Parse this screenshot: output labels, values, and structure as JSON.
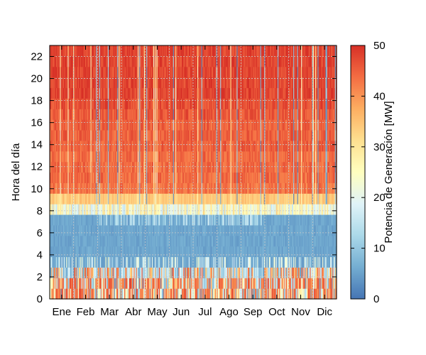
{
  "chart_data": {
    "type": "heatmap",
    "title": "",
    "ylabel": "Hora del día",
    "colorbar_label": "Potencia de Generación [MW]",
    "xlabel": "",
    "x_tick_labels": [
      "Ene",
      "Feb",
      "Mar",
      "Abr",
      "May",
      "Jun",
      "Jul",
      "Ago",
      "Sep",
      "Oct",
      "Nov",
      "Dic"
    ],
    "y_tick_labels": [
      "0",
      "2",
      "4",
      "6",
      "8",
      "10",
      "12",
      "14",
      "16",
      "18",
      "20",
      "22"
    ],
    "y_ticks": [
      0,
      2,
      4,
      6,
      8,
      10,
      12,
      14,
      16,
      18,
      20,
      22
    ],
    "colorbar_ticks": [
      0,
      10,
      20,
      30,
      40,
      50
    ],
    "colorbar_tick_labels": [
      "0",
      "10",
      "20",
      "30",
      "40",
      "50"
    ],
    "zlim": [
      0,
      50
    ],
    "ylim": [
      0,
      23
    ],
    "days": 365,
    "hours": 24,
    "grid": true,
    "colormap": [
      "#4575b4",
      "#74add1",
      "#abd9e9",
      "#e0f3f8",
      "#ffffbf",
      "#fee090",
      "#fdae61",
      "#f46d43",
      "#d73027"
    ],
    "hourly_typical_mw": [
      42,
      40,
      22,
      6,
      4,
      4,
      4,
      10,
      22,
      34,
      43,
      44,
      44,
      44,
      45,
      45,
      45,
      46,
      47,
      48,
      48,
      48,
      48,
      48
    ]
  }
}
